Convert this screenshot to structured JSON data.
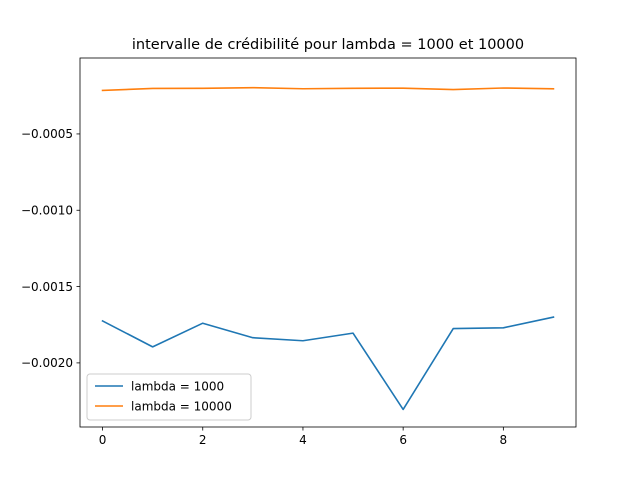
{
  "chart_data": {
    "type": "line",
    "title": "intervalle de crédibilité pour lambda = 1000 et 10000",
    "xlabel": "",
    "ylabel": "",
    "x": [
      0,
      1,
      2,
      3,
      4,
      5,
      6,
      7,
      8,
      9
    ],
    "xlim": [
      -0.45,
      9.45
    ],
    "ylim": [
      -0.00242,
      -2.5e-06
    ],
    "xticks": [
      0,
      2,
      4,
      6,
      8
    ],
    "yticks": [
      -0.0005,
      -0.001,
      -0.0015,
      -0.002
    ],
    "ytick_labels": [
      "−0.0005",
      "−0.0010",
      "−0.0015",
      "−0.0020"
    ],
    "grid": false,
    "legend_position": "lower-left",
    "series": [
      {
        "name": "lambda = 1000",
        "color": "#1f77b4",
        "values": [
          -0.001725,
          -0.001895,
          -0.00174,
          -0.001835,
          -0.001855,
          -0.001805,
          -0.002305,
          -0.001775,
          -0.00177,
          -0.0017
        ]
      },
      {
        "name": "lambda = 10000",
        "color": "#ff7f0e",
        "values": [
          -0.000215,
          -0.000202,
          -0.000201,
          -0.000197,
          -0.000204,
          -0.000201,
          -0.0002,
          -0.000209,
          -0.000199,
          -0.000204
        ]
      }
    ]
  }
}
